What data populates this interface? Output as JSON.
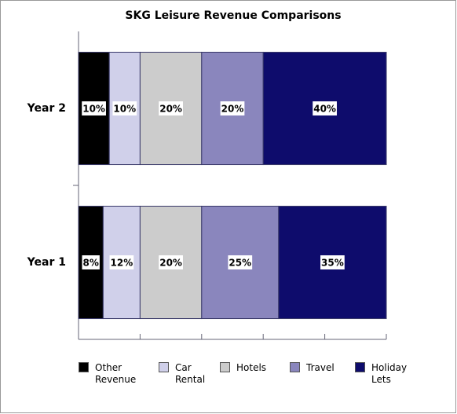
{
  "chart_data": {
    "type": "stacked-bar-horizontal",
    "title": "SKG Leisure Revenue Comparisons",
    "categories": [
      "Year 1",
      "Year 2"
    ],
    "series": [
      {
        "name": "Other Revenue",
        "color": "#000000",
        "values": [
          8,
          10
        ],
        "value_labels": [
          "8%",
          "10%"
        ]
      },
      {
        "name": "Car Rental",
        "color": "#d0d0ea",
        "values": [
          12,
          10
        ],
        "value_labels": [
          "12%",
          "10%"
        ]
      },
      {
        "name": "Hotels",
        "color": "#cccccc",
        "values": [
          20,
          20
        ],
        "value_labels": [
          "20%",
          "20%"
        ]
      },
      {
        "name": "Travel",
        "color": "#8a86bd",
        "values": [
          25,
          20
        ],
        "value_labels": [
          "25%",
          "20%"
        ]
      },
      {
        "name": "Holiday Lets",
        "color": "#0e0c6c",
        "values": [
          35,
          40
        ],
        "value_labels": [
          "35%",
          "40%"
        ]
      }
    ],
    "xlim": [
      0,
      100
    ],
    "xticks": [
      0,
      20,
      40,
      60,
      80,
      100
    ]
  }
}
